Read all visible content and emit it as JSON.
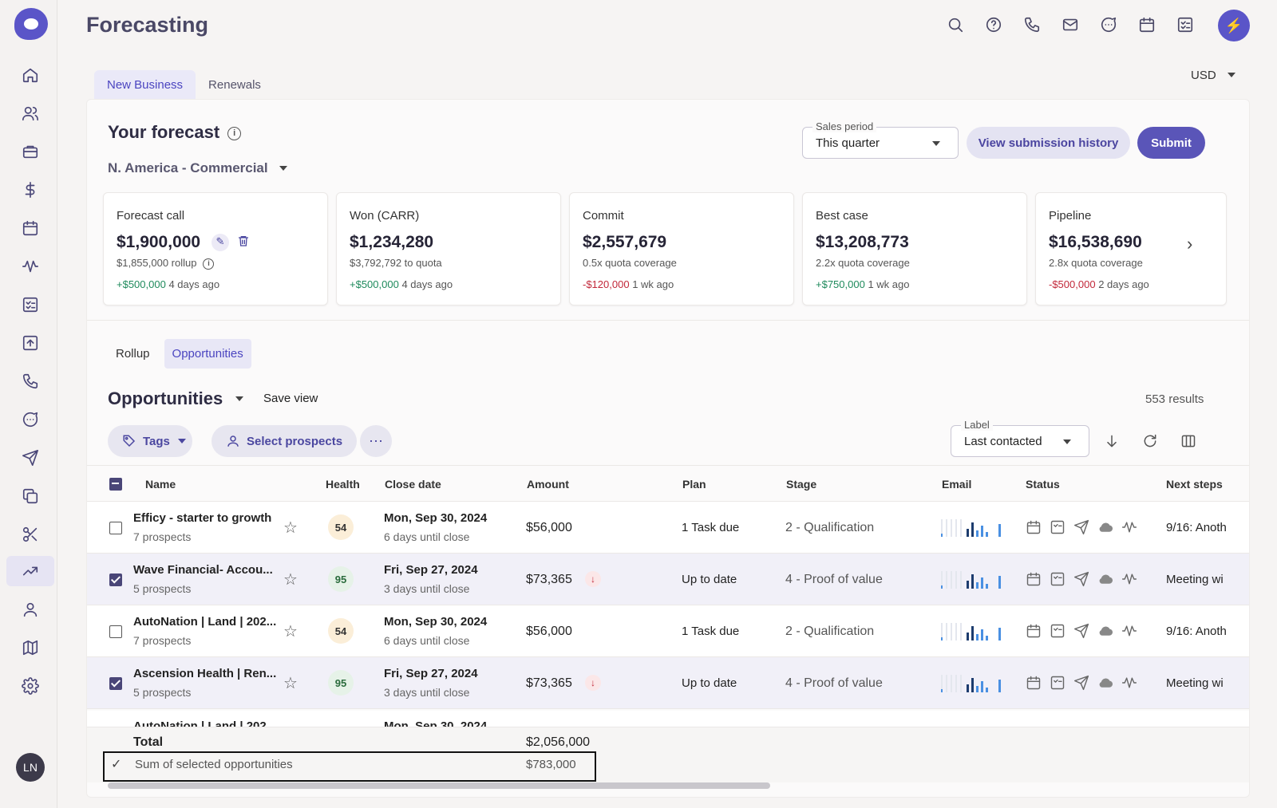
{
  "app": {
    "title": "Forecasting",
    "user_initials": "LN"
  },
  "header": {
    "icons": [
      "search-icon",
      "help-icon",
      "phone-icon",
      "mail-icon",
      "chat-icon",
      "calendar-icon",
      "tasks-icon",
      "bolt-icon"
    ]
  },
  "tabs": [
    {
      "label": "New Business",
      "active": true
    },
    {
      "label": "Renewals",
      "active": false
    }
  ],
  "currency": "USD",
  "forecast": {
    "title": "Your forecast",
    "region": "N. America - Commercial",
    "sales_period": {
      "label": "Sales period",
      "value": "This quarter"
    },
    "history_button": "View submission history",
    "submit_button": "Submit"
  },
  "cards": [
    {
      "label": "Forecast call",
      "value": "$1,900,000",
      "sub": "$1,855,000 rollup",
      "change": "+$500,000",
      "change_type": "pos",
      "when": "4 days ago"
    },
    {
      "label": "Won (CARR)",
      "value": "$1,234,280",
      "sub": "$3,792,792 to quota",
      "change": "+$500,000",
      "change_type": "pos",
      "when": "4 days ago"
    },
    {
      "label": "Commit",
      "value": "$2,557,679",
      "sub": "0.5x quota coverage",
      "change": "-$120,000",
      "change_type": "neg",
      "when": "1 wk ago"
    },
    {
      "label": "Best case",
      "value": "$13,208,773",
      "sub": "2.2x quota coverage",
      "change": "+$750,000",
      "change_type": "pos",
      "when": "1 wk ago"
    },
    {
      "label": "Pipeline",
      "value": "$16,538,690",
      "sub": "2.8x quota coverage",
      "change": "-$500,000",
      "change_type": "neg",
      "when": "2 days ago"
    }
  ],
  "subtabs": [
    {
      "label": "Rollup"
    },
    {
      "label": "Opportunities"
    }
  ],
  "opportunities": {
    "title": "Opportunities",
    "save_view": "Save view",
    "results": "553 results",
    "tags_chip": "Tags",
    "prospects_chip": "Select prospects",
    "label_field": {
      "label": "Label",
      "value": "Last contacted"
    }
  },
  "columns": [
    "Name",
    "Health",
    "Close date",
    "Amount",
    "Plan",
    "Stage",
    "Email",
    "Status",
    "Next steps"
  ],
  "rows": [
    {
      "name": "Efficy - starter to growth",
      "prospects": "7 prospects",
      "health": "54",
      "date": "Mon, Sep 30, 2024",
      "until": "6 days until close",
      "amount": "$56,000",
      "plan": "1 Task due",
      "stage": "2 - Qualification",
      "next": "9/16: Anoth",
      "selected": false,
      "down": false
    },
    {
      "name": "Wave Financial- Accou...",
      "prospects": "5 prospects",
      "health": "95",
      "date": "Fri, Sep 27, 2024",
      "until": "3 days until close",
      "amount": "$73,365",
      "plan": "Up to date",
      "stage": "4 - Proof of value",
      "next": "Meeting wi",
      "selected": true,
      "down": true
    },
    {
      "name": "AutoNation | Land | 202...",
      "prospects": "7 prospects",
      "health": "54",
      "date": "Mon, Sep 30, 2024",
      "until": "6 days until close",
      "amount": "$56,000",
      "plan": "1 Task due",
      "stage": "2 - Qualification",
      "next": "9/16: Anoth",
      "selected": false,
      "down": false
    },
    {
      "name": "Ascension Health | Ren...",
      "prospects": "5 prospects",
      "health": "95",
      "date": "Fri, Sep 27, 2024",
      "until": "3 days until close",
      "amount": "$73,365",
      "plan": "Up to date",
      "stage": "4 - Proof of value",
      "next": "Meeting wi",
      "selected": true,
      "down": true
    }
  ],
  "partial_row": {
    "name": "AutoNation | Land | 202",
    "date": "Mon, Sep 30, 2024"
  },
  "totals": {
    "label": "Total",
    "value": "$2,056,000",
    "selected_label": "Sum of selected opportunities",
    "selected_value": "$783,000"
  },
  "colors": {
    "accent": "#5a55c8",
    "positive": "#1f8a5c",
    "negative": "#c2283a"
  }
}
